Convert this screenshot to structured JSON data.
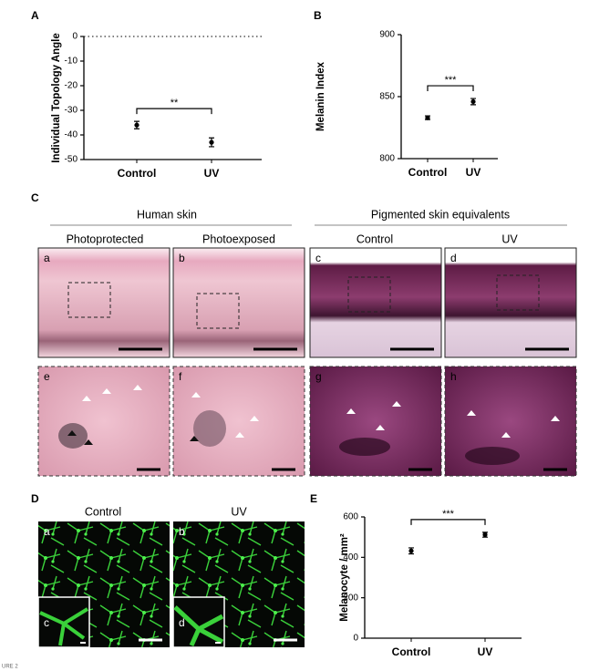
{
  "chart_data": [
    {
      "type": "errorbar",
      "panel_label": "A",
      "ylabel": "Individual Topology Angle",
      "categories": [
        "Control",
        "UV"
      ],
      "values": [
        -36,
        -43
      ],
      "errors": [
        1.5,
        1.8
      ],
      "color": "#000000",
      "ylim": [
        -50,
        0
      ],
      "yticks": [
        0,
        -10,
        -20,
        -30,
        -40,
        -50
      ],
      "zero_line": true,
      "significance": "**"
    },
    {
      "type": "errorbar",
      "panel_label": "B",
      "ylabel": "Melanin Index",
      "categories": [
        "Control",
        "UV"
      ],
      "values": [
        833,
        846
      ],
      "errors": [
        1.5,
        2.5
      ],
      "color": "#000000",
      "ylim": [
        800,
        900
      ],
      "yticks": [
        800,
        850,
        900
      ],
      "zero_line": false,
      "significance": "***"
    },
    {
      "type": "errorbar",
      "panel_label": "E",
      "ylabel": "Melanocyte / mm²",
      "categories": [
        "Control",
        "UV"
      ],
      "values": [
        432,
        512
      ],
      "errors": [
        15,
        12
      ],
      "color": "#000000",
      "ylim": [
        0,
        600
      ],
      "yticks": [
        0,
        200,
        400,
        600
      ],
      "zero_line": false,
      "significance": "***"
    }
  ],
  "panel_c": {
    "label": "C",
    "groups": [
      {
        "title": "Human skin",
        "columns": [
          "Photoprotected",
          "Photoexposed"
        ]
      },
      {
        "title": "Pigmented skin equivalents",
        "columns": [
          "Control",
          "UV"
        ]
      }
    ],
    "image_labels": [
      "a",
      "b",
      "c",
      "d",
      "e",
      "f",
      "g",
      "h"
    ]
  },
  "panel_d": {
    "label": "D",
    "columns": [
      "Control",
      "UV"
    ],
    "image_labels": [
      "a",
      "b"
    ],
    "inset_labels": [
      "c",
      "d"
    ]
  },
  "caption_fragment": "URE 2"
}
